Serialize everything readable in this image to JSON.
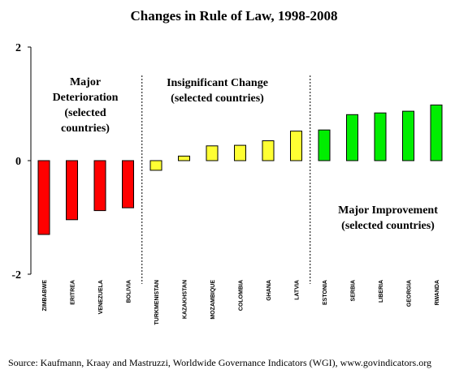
{
  "chart_data": {
    "type": "bar",
    "title": "Changes in Rule of Law, 1998-2008",
    "xlabel": "",
    "ylabel": "",
    "ylim": [
      -2,
      2
    ],
    "yticks": [
      "2",
      "0",
      "-2"
    ],
    "grid": false,
    "categories": [
      "ZIMBABWE",
      "ERITREA",
      "VENEZUELA",
      "BOLIVIA",
      "TURKMENISTAN",
      "KAZAKHSTAN",
      "MOZAMBIQUE",
      "COLOMBIA",
      "GHANA",
      "LATVIA",
      "ESTONIA",
      "SERBIA",
      "LIBERIA",
      "GEORGIA",
      "RWANDA"
    ],
    "values": [
      -1.3,
      -1.04,
      -0.88,
      -0.83,
      -0.17,
      0.08,
      0.26,
      0.27,
      0.35,
      0.52,
      0.54,
      0.81,
      0.84,
      0.87,
      0.98
    ],
    "groups": [
      {
        "label_lines": [
          "Major",
          "Deterioration",
          "(selected",
          "countries)"
        ],
        "color": "#ff0000",
        "start": 0,
        "end": 3
      },
      {
        "label_lines": [
          "Insignificant Change",
          "(selected countries)"
        ],
        "color": "#ffff33",
        "start": 4,
        "end": 9
      },
      {
        "label_lines": [
          "Major Improvement",
          "(selected countries)"
        ],
        "color": "#00ee00",
        "start": 10,
        "end": 14
      }
    ],
    "source": "Source: Kaufmann, Kraay and Mastruzzi, Worldwide Governance Indicators (WGI), www.govindicators.org"
  }
}
